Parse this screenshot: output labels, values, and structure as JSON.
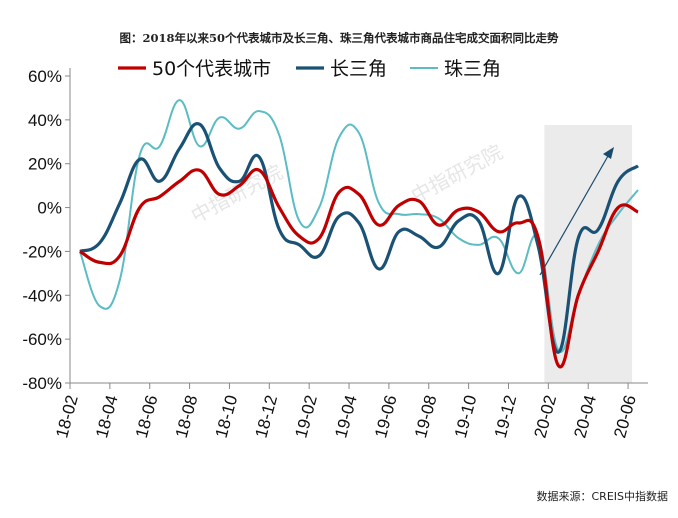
{
  "chart_data": {
    "type": "line",
    "title": "图：2018年以来50个代表城市及长三角、珠三角代表城市商品住宅成交面积同比走势",
    "source": "数据来源：CREIS中指数据",
    "watermark": "中指研究院",
    "categories": [
      "18-02",
      "18-03",
      "18-04",
      "18-05",
      "18-06",
      "18-07",
      "18-08",
      "18-09",
      "18-10",
      "18-11",
      "18-12",
      "19-01",
      "19-02",
      "19-03",
      "19-04",
      "19-05",
      "19-06",
      "19-07",
      "19-08",
      "19-09",
      "19-10",
      "19-11",
      "19-12",
      "20-01",
      "20-02",
      "20-03",
      "20-04",
      "20-05",
      "20-06"
    ],
    "tick_labels": [
      "18-02",
      "18-04",
      "18-06",
      "18-08",
      "18-10",
      "18-12",
      "19-02",
      "19-04",
      "19-06",
      "19-08",
      "19-10",
      "19-12",
      "20-02",
      "20-04",
      "20-06"
    ],
    "y_ticks": [
      "60%",
      "40%",
      "20%",
      "0%",
      "-20%",
      "-40%",
      "-60%",
      "-80%"
    ],
    "ylim": [
      -80,
      60
    ],
    "y_unit": "%",
    "grid": false,
    "legend_position": "top",
    "highlight_region": [
      "20-01",
      "20-06"
    ],
    "highlight_color": "#ebebeb",
    "trend_arrow": true,
    "series": [
      {
        "name": "50个代表城市",
        "color": "#c00000",
        "values": [
          -20,
          -25,
          -22,
          0,
          5,
          12,
          17,
          6,
          10,
          17,
          0,
          -13,
          -14,
          7,
          6,
          -8,
          1,
          3,
          -8,
          -1,
          -2,
          -11,
          -7,
          -14,
          -72,
          -40,
          -20,
          0,
          -2
        ]
      },
      {
        "name": "长三角",
        "color": "#1a5276",
        "values": [
          -20,
          -16,
          2,
          22,
          12,
          27,
          38,
          18,
          12,
          23,
          -10,
          -17,
          -22,
          -4,
          -7,
          -28,
          -11,
          -13,
          -18,
          -6,
          -6,
          -30,
          5,
          -18,
          -66,
          -14,
          -10,
          12,
          19
        ]
      },
      {
        "name": "珠三角",
        "color": "#5bbcc4",
        "values": [
          -20,
          -45,
          -33,
          24,
          28,
          49,
          28,
          41,
          36,
          44,
          33,
          -6,
          0,
          32,
          34,
          2,
          -3,
          -3,
          -5,
          -14,
          -17,
          -14,
          -30,
          -14,
          -65,
          -40,
          -17,
          -3,
          8
        ]
      }
    ]
  }
}
